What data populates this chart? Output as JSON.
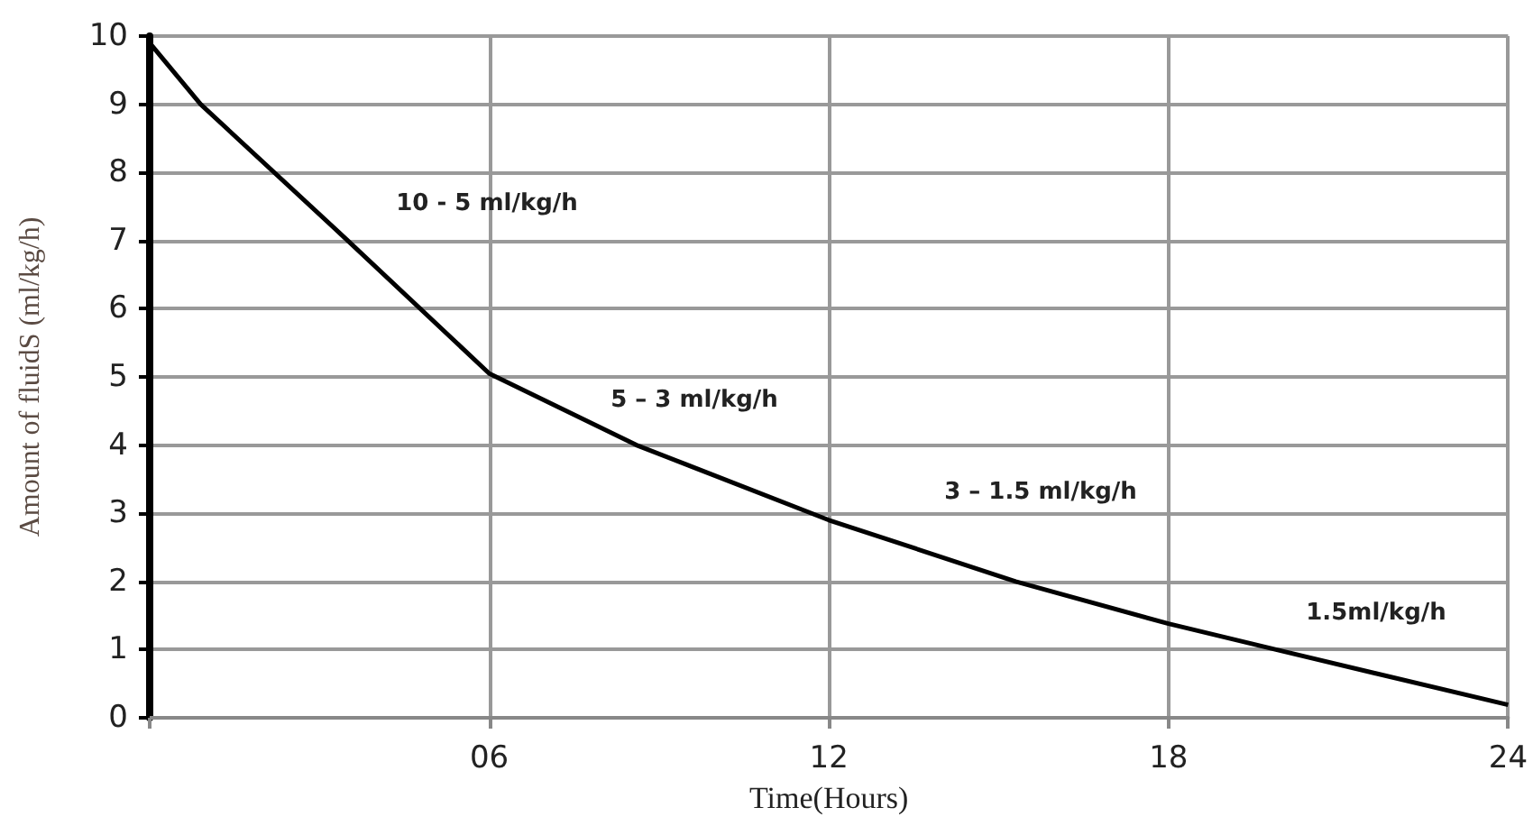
{
  "chart_data": {
    "type": "line",
    "xlabel": "Time(Hours)",
    "ylabel": "Amount of fluidS (ml/kg/h)",
    "x": [
      0,
      0.9,
      3.5,
      6,
      8.6,
      12,
      15.3,
      18,
      19.9,
      24
    ],
    "series": [
      {
        "color": "#000000",
        "values": [
          9.9,
          9,
          7,
          5.05,
          4,
          2.9,
          2,
          1.38,
          1,
          0.19
        ]
      }
    ],
    "xlim": [
      0,
      24
    ],
    "xticks": [
      {
        "value": 0,
        "label": null
      },
      {
        "value": 6,
        "label": "06"
      },
      12,
      18,
      24
    ],
    "ylim": [
      0,
      10
    ],
    "yticks": [
      0,
      1,
      2,
      3,
      4,
      5,
      6,
      7,
      8,
      9,
      10
    ],
    "grid": true,
    "marker": "none",
    "line_style": "solid",
    "annotations": [
      "10 - 5 ml/kg/h",
      "5 – 3 ml/kg/h",
      "3 – 1.5 ml/kg/h",
      "1.5ml/kg/h"
    ]
  }
}
